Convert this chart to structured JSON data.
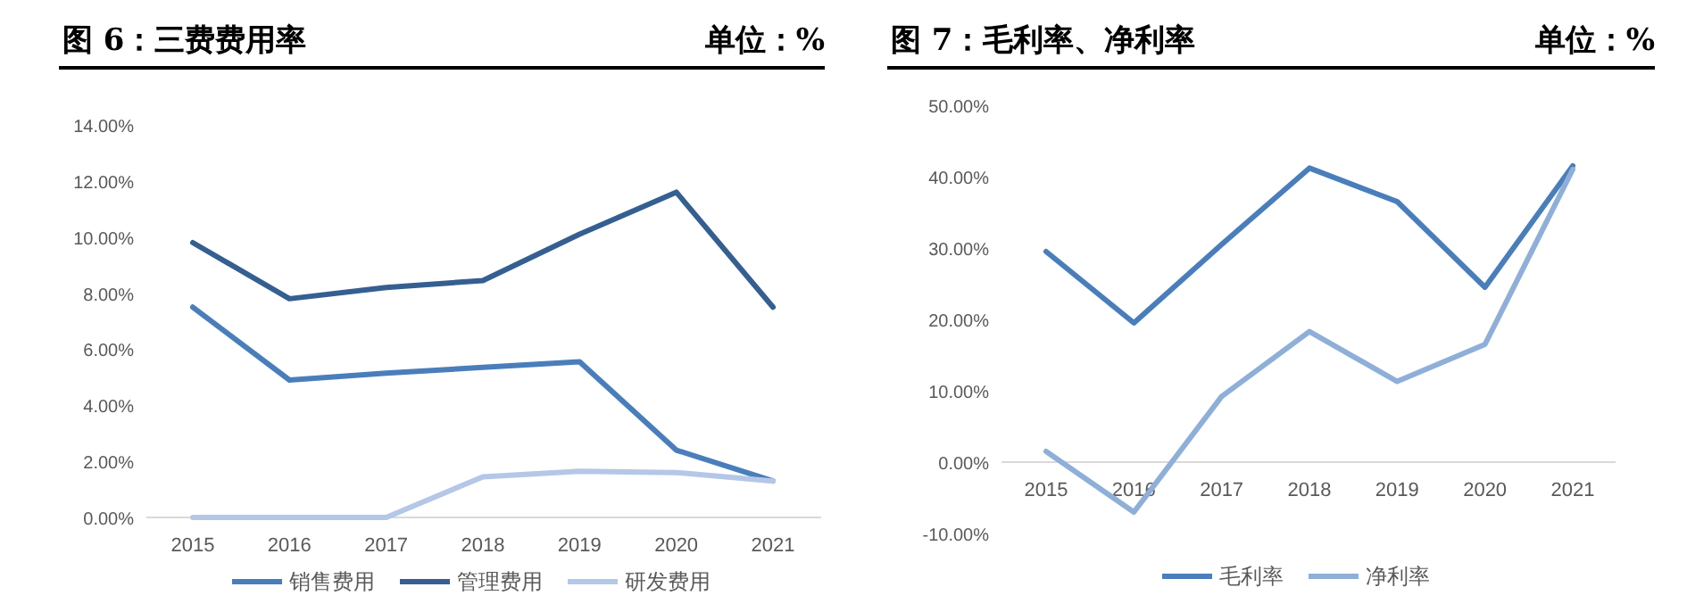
{
  "chart_data": [
    {
      "type": "line",
      "title": "图 6：三费费用率",
      "annotations": [
        "单位：%"
      ],
      "categories": [
        "2015",
        "2016",
        "2017",
        "2018",
        "2019",
        "2020",
        "2021"
      ],
      "series": [
        {
          "name": "销售费用",
          "color": "#4a7ebb",
          "values": [
            7.5,
            4.9,
            5.15,
            5.35,
            5.55,
            2.4,
            1.3
          ]
        },
        {
          "name": "管理费用",
          "color": "#355f91",
          "values": [
            9.8,
            7.8,
            8.2,
            8.45,
            10.1,
            11.6,
            7.5
          ]
        },
        {
          "name": "研发费用",
          "color": "#b4c7e7",
          "values": [
            0,
            0,
            0,
            1.45,
            1.65,
            1.6,
            1.3
          ]
        }
      ],
      "ylim": [
        0,
        14
      ],
      "yticks": [
        {
          "value": 0,
          "label": "0.00%"
        },
        {
          "value": 2,
          "label": "2.00%"
        },
        {
          "value": 4,
          "label": "4.00%"
        },
        {
          "value": 6,
          "label": "6.00%"
        },
        {
          "value": 8,
          "label": "8.00%"
        },
        {
          "value": 10,
          "label": "10.00%"
        },
        {
          "value": 12,
          "label": "12.00%"
        },
        {
          "value": 14,
          "label": "14.00%"
        }
      ],
      "grid": false,
      "legend": "bottom"
    },
    {
      "type": "line",
      "title": "图 7：毛利率、净利率",
      "annotations": [
        "单位：%"
      ],
      "categories": [
        "2015",
        "2016",
        "2017",
        "2018",
        "2019",
        "2020",
        "2021"
      ],
      "series": [
        {
          "name": "毛利率",
          "color": "#4a7ebb",
          "values": [
            29.5,
            19.5,
            30.5,
            41.2,
            36.5,
            24.5,
            41.5
          ]
        },
        {
          "name": "净利率",
          "color": "#8eafd8",
          "values": [
            1.5,
            -7,
            9.2,
            18.3,
            11.3,
            16.5,
            41
          ]
        }
      ],
      "ylim": [
        -10,
        50
      ],
      "yticks": [
        {
          "value": -10,
          "label": "-10.00%"
        },
        {
          "value": 0,
          "label": "0.00%"
        },
        {
          "value": 10,
          "label": "10.00%"
        },
        {
          "value": 20,
          "label": "20.00%"
        },
        {
          "value": 30,
          "label": "30.00%"
        },
        {
          "value": 40,
          "label": "40.00%"
        },
        {
          "value": 50,
          "label": "50.00%"
        }
      ],
      "grid": false,
      "legend": "bottom"
    }
  ]
}
